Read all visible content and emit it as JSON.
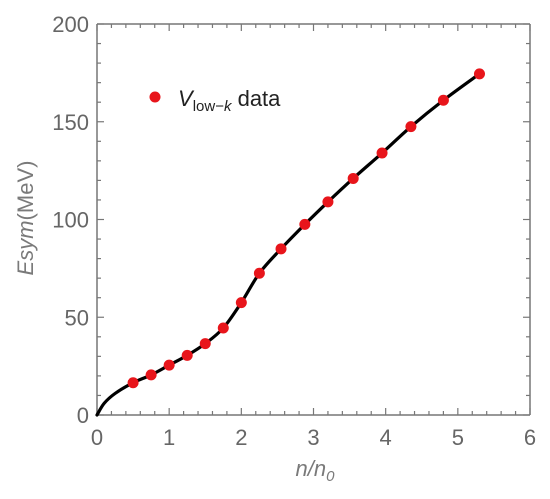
{
  "chart_data": {
    "type": "scatter",
    "title": "",
    "xlabel": "n/n0",
    "xlabel_parts": {
      "main": "n/n",
      "sub": "0"
    },
    "ylabel": "Esym(MeV)",
    "ylabel_parts": {
      "italic": "Esym",
      "normal": "(MeV)"
    },
    "xlim": [
      0,
      6
    ],
    "ylim": [
      0,
      200
    ],
    "xticks": [
      0,
      1,
      2,
      3,
      4,
      5,
      6
    ],
    "yticks": [
      0,
      50,
      100,
      150,
      200
    ],
    "grid": false,
    "legend_position": "top-left",
    "colors": {
      "points": "#e8151b",
      "line": "#000000",
      "axis": "#777777"
    },
    "series": [
      {
        "name": "Vlow-k data",
        "name_parts": {
          "symbol": "V",
          "subscript_normal": "low−",
          "subscript_italic": "k",
          "suffix": " data"
        },
        "kind": "scatter",
        "x": [
          0.5,
          0.75,
          1.0,
          1.25,
          1.5,
          1.75,
          2.0,
          2.25,
          2.55,
          2.88,
          3.2,
          3.55,
          3.95,
          4.35,
          4.8,
          5.3
        ],
        "y": [
          16.5,
          20.5,
          25.5,
          30.5,
          36.5,
          44.5,
          57.5,
          72.5,
          85.0,
          97.5,
          109.0,
          121.0,
          134.0,
          147.5,
          161.0,
          174.5
        ]
      },
      {
        "kind": "line",
        "x": [
          0.0,
          0.1,
          0.25,
          0.5,
          0.75,
          1.0,
          1.25,
          1.5,
          1.75,
          2.0,
          2.25,
          2.55,
          2.88,
          3.2,
          3.55,
          3.95,
          4.35,
          4.8,
          5.3
        ],
        "y": [
          0.0,
          6.0,
          11.0,
          16.5,
          20.5,
          25.5,
          30.5,
          36.5,
          44.5,
          57.5,
          72.5,
          85.0,
          97.5,
          109.0,
          121.0,
          134.0,
          147.5,
          161.0,
          174.5
        ]
      }
    ]
  }
}
